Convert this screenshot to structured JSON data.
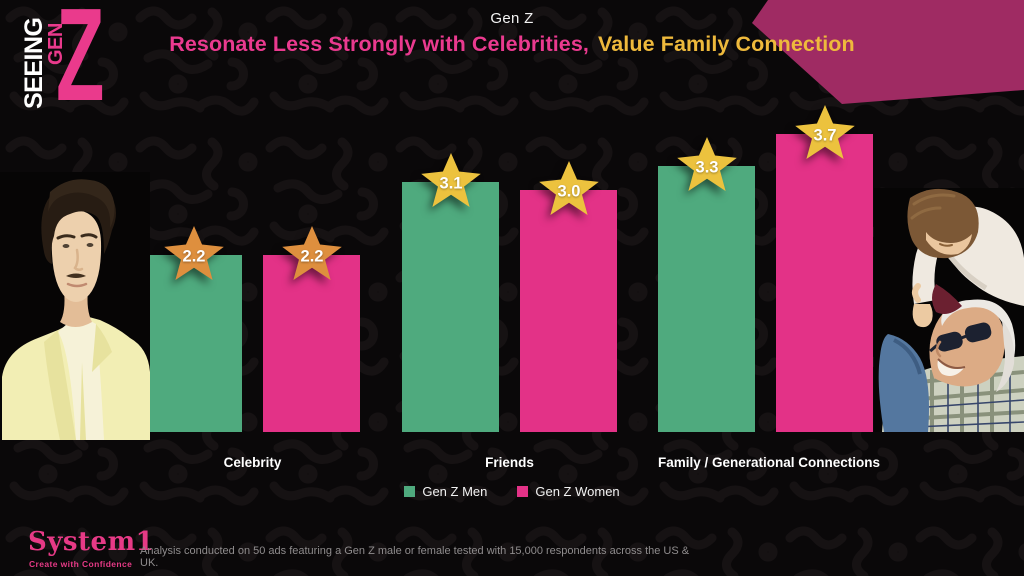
{
  "header": {
    "brand_logo": {
      "seeing": "SEEING",
      "gen": "GEN",
      "z": "Z"
    },
    "eyebrow": "Gen Z",
    "headline": {
      "pink": "Resonate Less Strongly with Celebrities,",
      "yellow": "Value Family Connection"
    }
  },
  "chart_data": {
    "type": "bar",
    "title": "Gen Z Resonate Less Strongly with Celebrities, Value Family Connection",
    "categories": [
      "Celebrity",
      "Friends",
      "Family / Generational Connections"
    ],
    "series": [
      {
        "name": "Gen Z Men",
        "color": "#4faa7e",
        "values": [
          2.2,
          3.1,
          3.3
        ]
      },
      {
        "name": "Gen Z Women",
        "color": "#e33287",
        "values": [
          2.2,
          3.0,
          3.7
        ]
      }
    ],
    "ylim": [
      0,
      4
    ],
    "grid": false,
    "legend_position": "bottom",
    "value_labels": "star-markers",
    "star_colors": [
      "#de8f3e",
      "#ecc23e",
      "#ecc23e"
    ]
  },
  "footer": {
    "brand": "System1",
    "tagline": "Create with Confidence",
    "note": "Analysis conducted on 50 ads featuring a Gen Z male or female tested with 15,000 respondents across the US & UK."
  },
  "images": {
    "celebrity_photo_alt": "Young man in pale yellow suit",
    "family_photo_alt": "Grandfather carrying grandson on his shoulders"
  },
  "colors": {
    "background": "#0a0809",
    "banner": "#9f2b63",
    "title_pink": "#ea3a8f",
    "title_yellow": "#eeb93c"
  }
}
